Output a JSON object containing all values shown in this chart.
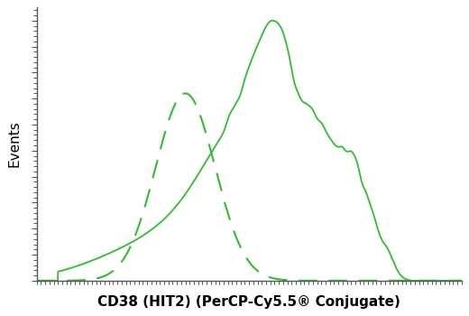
{
  "title": "",
  "xlabel": "CD38 (HIT2) (PerCP-Cy5.5® Conjugate)",
  "ylabel": "Events",
  "line_color": "#33bb33",
  "background_color": "#ffffff",
  "xlim": [
    0,
    1000
  ],
  "ylim": [
    0,
    1.05
  ],
  "xlabel_fontsize": 11,
  "xlabel_fontweight": "bold",
  "ylabel_fontsize": 11,
  "ylabel_fontweight": "normal"
}
